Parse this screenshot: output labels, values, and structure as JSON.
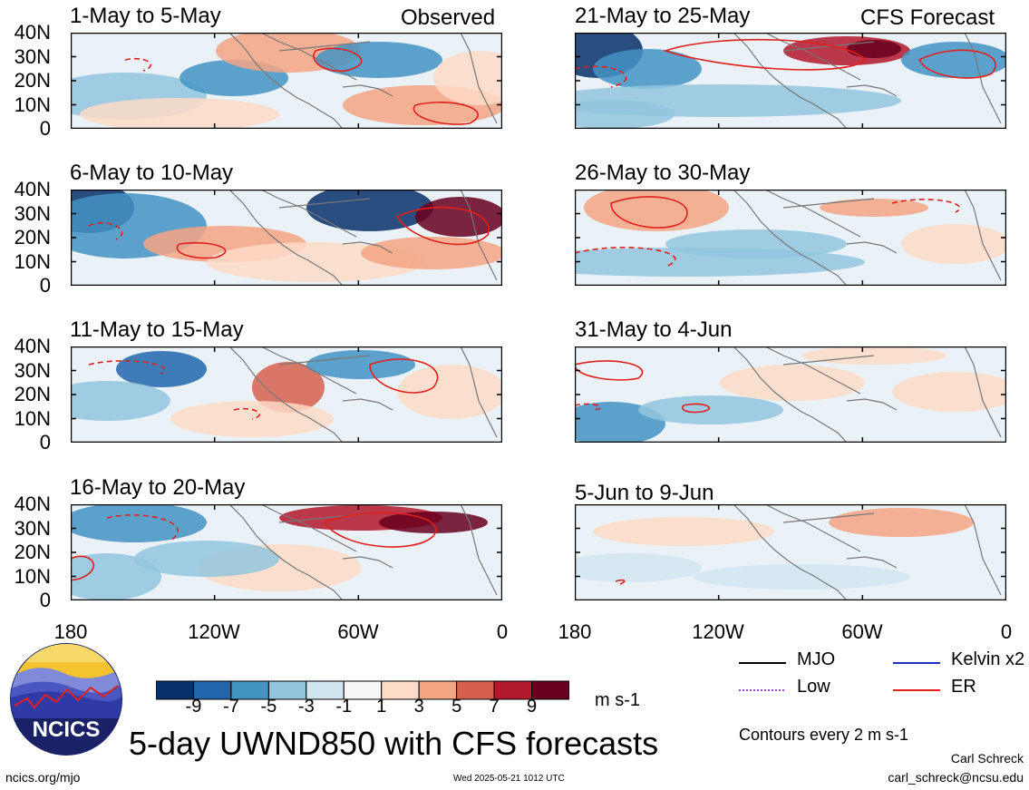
{
  "header": {
    "observed_label": "Observed",
    "forecast_label": "CFS Forecast"
  },
  "panels": [
    {
      "title": "1-May to 5-May",
      "column": "observed",
      "period": 1
    },
    {
      "title": "6-May to 10-May",
      "column": "observed",
      "period": 2
    },
    {
      "title": "11-May to 15-May",
      "column": "observed",
      "period": 3
    },
    {
      "title": "16-May to 20-May",
      "column": "observed",
      "period": 4
    },
    {
      "title": "21-May to 25-May",
      "column": "forecast",
      "period": 1
    },
    {
      "title": "26-May to 30-May",
      "column": "forecast",
      "period": 2
    },
    {
      "title": "31-May to 4-Jun",
      "column": "forecast",
      "period": 3
    },
    {
      "title": "5-Jun to 9-Jun",
      "column": "forecast",
      "period": 4
    }
  ],
  "axes": {
    "lat_labels": [
      "40N",
      "30N",
      "20N",
      "10N",
      "0"
    ],
    "lon_labels": [
      "180",
      "120W",
      "60W",
      "0"
    ],
    "lat_range": [
      0,
      40
    ],
    "lon_range": [
      -180,
      0
    ]
  },
  "colorbar": {
    "labels": [
      "-9",
      "-7",
      "-5",
      "-3",
      "-1",
      "1",
      "3",
      "5",
      "7",
      "9"
    ],
    "colors": [
      "#08306b",
      "#2166ac",
      "#4393c3",
      "#92c5de",
      "#d1e5f0",
      "#f7f7f7",
      "#fddbc7",
      "#f4a582",
      "#d6604d",
      "#b2182b",
      "#67001f"
    ],
    "units": "m s-1"
  },
  "legend": {
    "items": [
      {
        "label": "MJO",
        "color": "#000000",
        "style": "solid"
      },
      {
        "label": "Kelvin x2",
        "color": "#1f2fbf",
        "style": "solid"
      },
      {
        "label": "Low",
        "color": "#a040e0",
        "style": "dotted"
      },
      {
        "label": "ER",
        "color": "#e0201b",
        "style": "solid"
      }
    ],
    "contour_note": "Contours every 2 m s-1"
  },
  "footer": {
    "main_title": "5-day UWND850 with CFS forecasts",
    "logo_text": "NCICS",
    "url": "ncics.org/mjo",
    "timestamp": "Wed 2025-05-21 1012 UTC",
    "author": "Carl Schreck",
    "email": "carl_schreck@ncsu.edu"
  }
}
